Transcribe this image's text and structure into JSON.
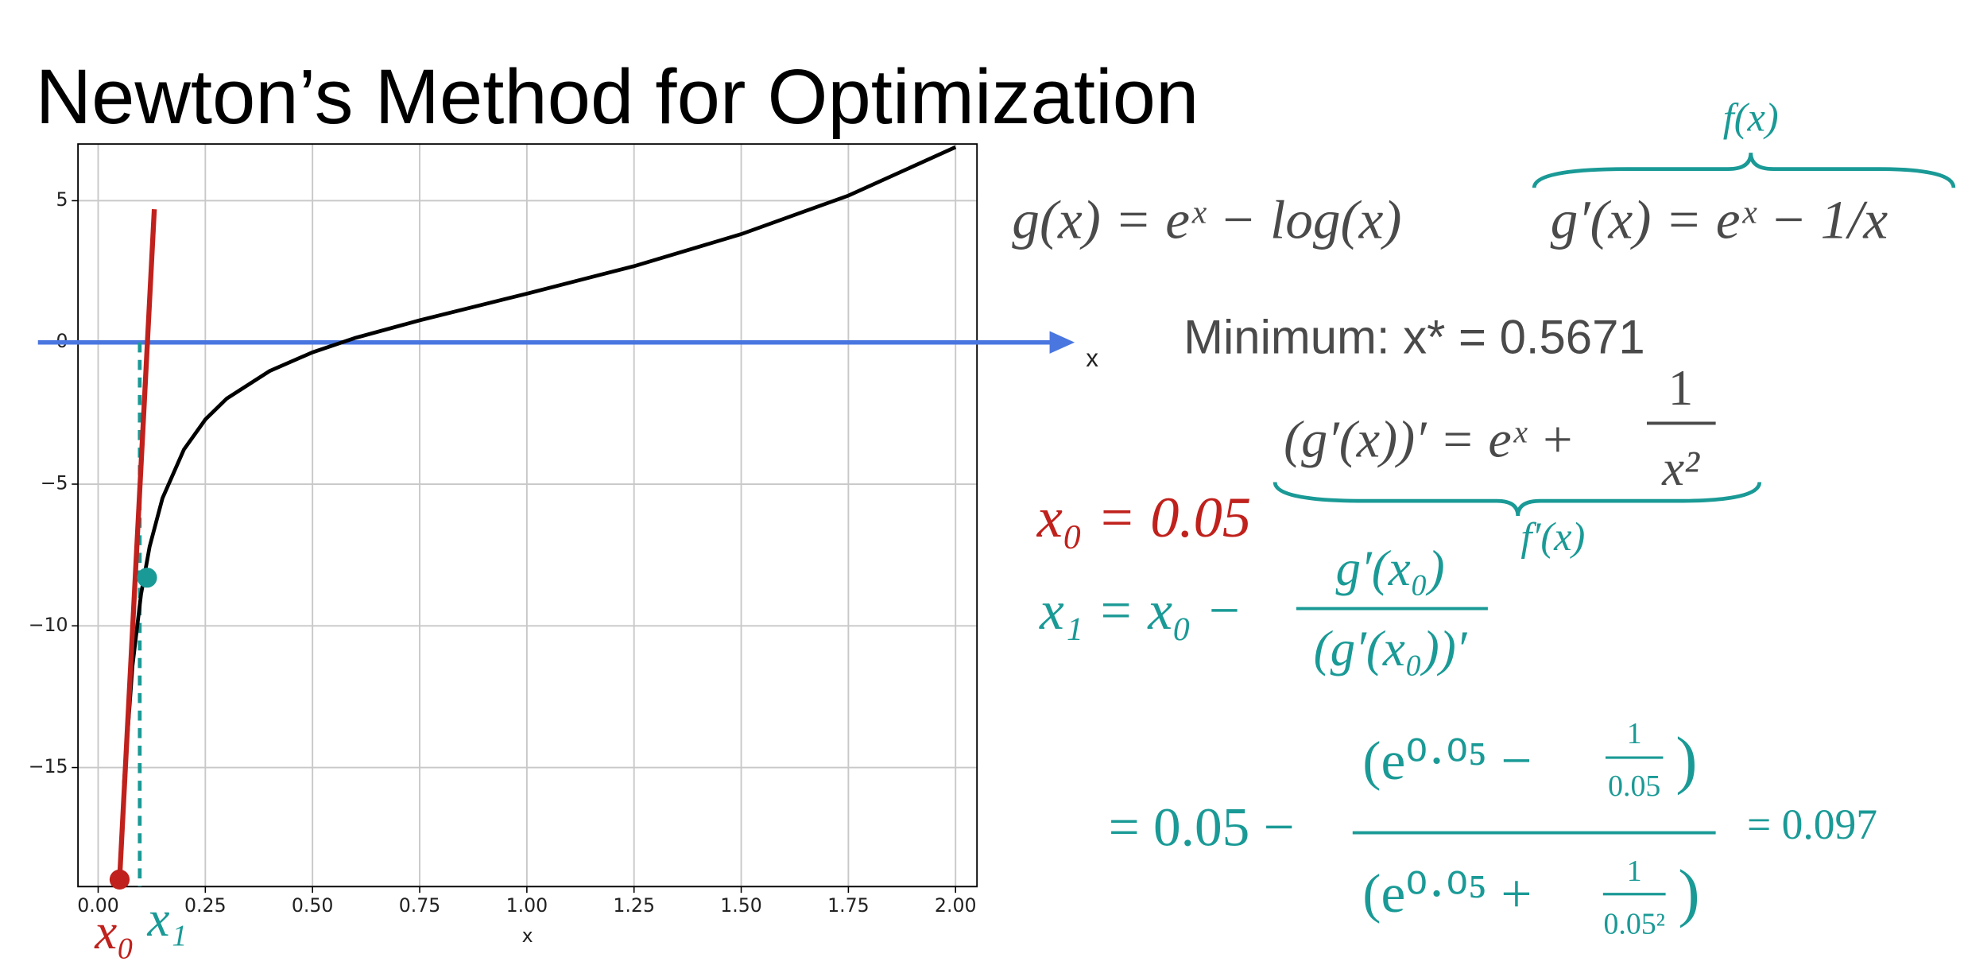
{
  "slide": {
    "title": "Newton’s Method for Optimization",
    "g_def": "g(x) = eˣ − log(x)",
    "g_prime": "g′(x) = eˣ − 1/x",
    "g_prime_brace": "f(x)",
    "minimum": "Minimum: x* = 0.5671",
    "g_second_lhs": "(g′(x))′ = eˣ +",
    "g_second_num": "1",
    "g_second_den": "x²",
    "g_second_brace": "f′(x)",
    "x0_def": "x₀ = 0.05",
    "x1_lhs": "x₁ = x₀ −",
    "x1_num": "g′(x₀)",
    "x1_den": "(g′(x₀))′",
    "calc_lhs": "= 0.05 −",
    "calc_num_open": "(e⁰·⁰⁵ −",
    "calc_num_frac_num": "1",
    "calc_num_frac_den": "0.05",
    "calc_num_close": ")",
    "calc_den_open": "(e⁰·⁰⁵ +",
    "calc_den_frac_num": "1",
    "calc_den_frac_den": "0.05²",
    "calc_den_close": ")",
    "calc_result": "= 0.097"
  },
  "chart_data": {
    "type": "line",
    "xlabel": "x",
    "xlim": [
      -0.047,
      2.05
    ],
    "ylim": [
      -19.2,
      7.0
    ],
    "xticks": [
      {
        "value": 0,
        "label": "0.00"
      },
      {
        "value": 0.25,
        "label": "0.25"
      },
      {
        "value": 0.5,
        "label": "0.50"
      },
      {
        "value": 0.75,
        "label": "0.75"
      },
      {
        "value": 1,
        "label": "1.00"
      },
      {
        "value": 1.25,
        "label": "1.25"
      },
      {
        "value": 1.5,
        "label": "1.50"
      },
      {
        "value": 1.75,
        "label": "1.75"
      },
      {
        "value": 2,
        "label": "2.00"
      }
    ],
    "yticks": [
      5,
      0,
      {
        "value": -5,
        "label": "−5"
      },
      {
        "value": -10,
        "label": "−10"
      },
      {
        "value": -15,
        "label": "−15"
      }
    ],
    "grid": true,
    "series": [
      {
        "color": "#000000",
        "x": [
          0.06,
          0.08,
          0.1,
          0.12,
          0.15,
          0.2,
          0.25,
          0.3,
          0.4,
          0.5,
          0.6,
          0.75,
          1.0,
          1.25,
          1.5,
          1.75,
          2.0
        ],
        "values": [
          -15.6,
          -11.42,
          -8.89,
          -7.21,
          -5.5,
          -3.78,
          -2.72,
          -1.98,
          -1.01,
          -0.35,
          0.16,
          0.78,
          1.72,
          2.69,
          3.82,
          5.18,
          6.89
        ]
      },
      {
        "color": "#c0211c",
        "x": [
          0.05,
          0.131
        ],
        "values": [
          -18.95,
          4.7
        ]
      }
    ],
    "axis_arrow": {
      "y": 0,
      "label": "x",
      "color": "#4a76e0"
    },
    "points": [
      {
        "x": 0.05,
        "y": -18.95,
        "color": "#c0211c",
        "label": "x₀"
      },
      {
        "x": 0.114,
        "y": -8.3,
        "color": "#1a9a96"
      }
    ],
    "dashed_x": {
      "x": 0.097,
      "color": "#1a9a96",
      "label": "x₁"
    }
  }
}
